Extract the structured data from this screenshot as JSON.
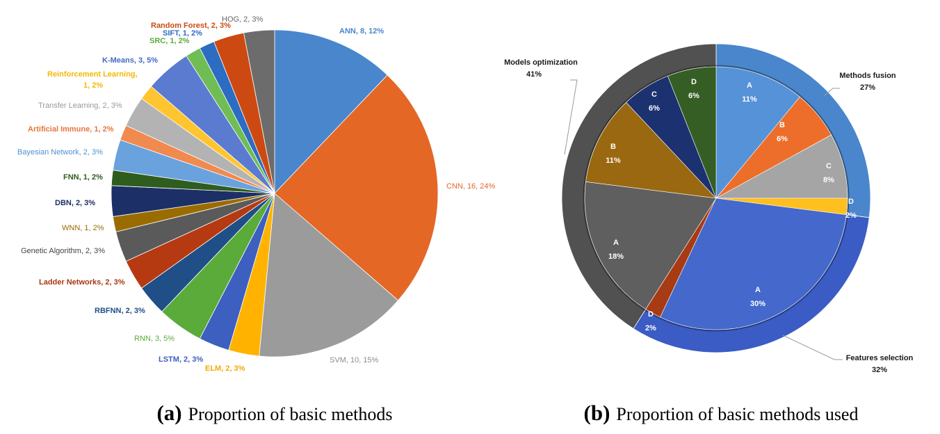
{
  "chart_data": [
    {
      "type": "pie",
      "caption_key": "(a)",
      "caption_text": "Proportion of basic methods",
      "slices": [
        {
          "label": "ANN, 8, 12%",
          "value": 8,
          "color": "#4a86cc",
          "label_color": "#4a86cc"
        },
        {
          "label": "CNN, 16, 24%",
          "value": 16,
          "color": "#e46725",
          "label_color": "#e46725"
        },
        {
          "label": "SVM,  10,  15%",
          "value": 10,
          "color": "#9b9b9b",
          "label_color": "#8c8c8c"
        },
        {
          "label": "ELM,  2,  3%",
          "value": 2,
          "color": "#ffb300",
          "label_color": "#f5a800"
        },
        {
          "label": "LSTM,  2,  3%",
          "value": 2,
          "color": "#3c5fc0",
          "label_color": "#3c5fc0"
        },
        {
          "label": "RNN, 3, 5%",
          "value": 3,
          "color": "#5aab3a",
          "label_color": "#5aab3a"
        },
        {
          "label": "RBFNN, 2, 3%",
          "value": 2,
          "color": "#1f4f86",
          "label_color": "#1f4f86"
        },
        {
          "label": "Ladder Networks, 2, 3%",
          "value": 2,
          "color": "#b53a12",
          "label_color": "#a83612"
        },
        {
          "label": "Genetic Algorithm, 2, 3%",
          "value": 2,
          "color": "#5a5a5a",
          "label_color": "#444444"
        },
        {
          "label": "WNN, 1, 2%",
          "value": 1,
          "color": "#9a6c00",
          "label_color": "#9a6c00"
        },
        {
          "label": "DBN,  2,  3%",
          "value": 2,
          "color": "#1c2f66",
          "label_color": "#1c2f66"
        },
        {
          "label": "FNN, 1, 2%",
          "value": 1,
          "color": "#2f5c1f",
          "label_color": "#2f5c1f"
        },
        {
          "label": "Bayesian Network, 2, 3%",
          "value": 2,
          "color": "#6aa2de",
          "label_color": "#4a90d0"
        },
        {
          "label": "Artificial Immune, 1, 2%",
          "value": 1,
          "color": "#f08a4f",
          "label_color": "#e8743b"
        },
        {
          "label": "Transfer Learning, 2, 3%",
          "value": 2,
          "color": "#b3b3b3",
          "label_color": "#999999"
        },
        {
          "label": "Reinforcement Learning, 1, 2%",
          "value": 1,
          "color": "#ffc530",
          "label_color": "#f5b800"
        },
        {
          "label": "K-Means, 3, 5%",
          "value": 3,
          "color": "#5b7bd0",
          "label_color": "#4468c8"
        },
        {
          "label": "SRC, 1, 2%",
          "value": 1,
          "color": "#70bd55",
          "label_color": "#5aab3a"
        },
        {
          "label": "SIFT, 1, 2%",
          "value": 1,
          "color": "#2c6cc2",
          "label_color": "#2c6cc2"
        },
        {
          "label": "Random Forest, 2, 3%",
          "value": 2,
          "color": "#cc4a12",
          "label_color": "#c84a12"
        },
        {
          "label": "HOG, 2, 3%",
          "value": 2,
          "color": "#6c6c6c",
          "label_color": "#666666"
        }
      ]
    },
    {
      "type": "pie",
      "caption_key": "(b)",
      "caption_text": "Proportion of basic methods used",
      "outer": [
        {
          "label": "Methods fusion",
          "percent": "27%",
          "value": 27,
          "color": "#4a86cc"
        },
        {
          "label": "Features selection",
          "percent": "32%",
          "value": 32,
          "color": "#3a5cc4"
        },
        {
          "label": "Models optimization",
          "percent": "41%",
          "value": 41,
          "color": "#515151"
        }
      ],
      "inner": [
        {
          "label": "A",
          "percent": "11%",
          "value": 11,
          "color": "#5592d8"
        },
        {
          "label": "B",
          "percent": "6%",
          "value": 6,
          "color": "#ec6e2a"
        },
        {
          "label": "C",
          "percent": "8%",
          "value": 8,
          "color": "#a5a5a5"
        },
        {
          "label": "D",
          "percent": "2%",
          "value": 2,
          "color": "#ffbf1f"
        },
        {
          "label": "A",
          "percent": "30%",
          "value": 30,
          "color": "#4468cc"
        },
        {
          "label": "D",
          "percent": "2%",
          "value": 2,
          "color": "#a83a14"
        },
        {
          "label": "A",
          "percent": "18%",
          "value": 18,
          "color": "#5f5f5f"
        },
        {
          "label": "B",
          "percent": "11%",
          "value": 11,
          "color": "#9a6810"
        },
        {
          "label": "C",
          "percent": "6%",
          "value": 6,
          "color": "#1c3270"
        },
        {
          "label": "D",
          "percent": "6%",
          "value": 6,
          "color": "#355e24"
        }
      ]
    }
  ]
}
